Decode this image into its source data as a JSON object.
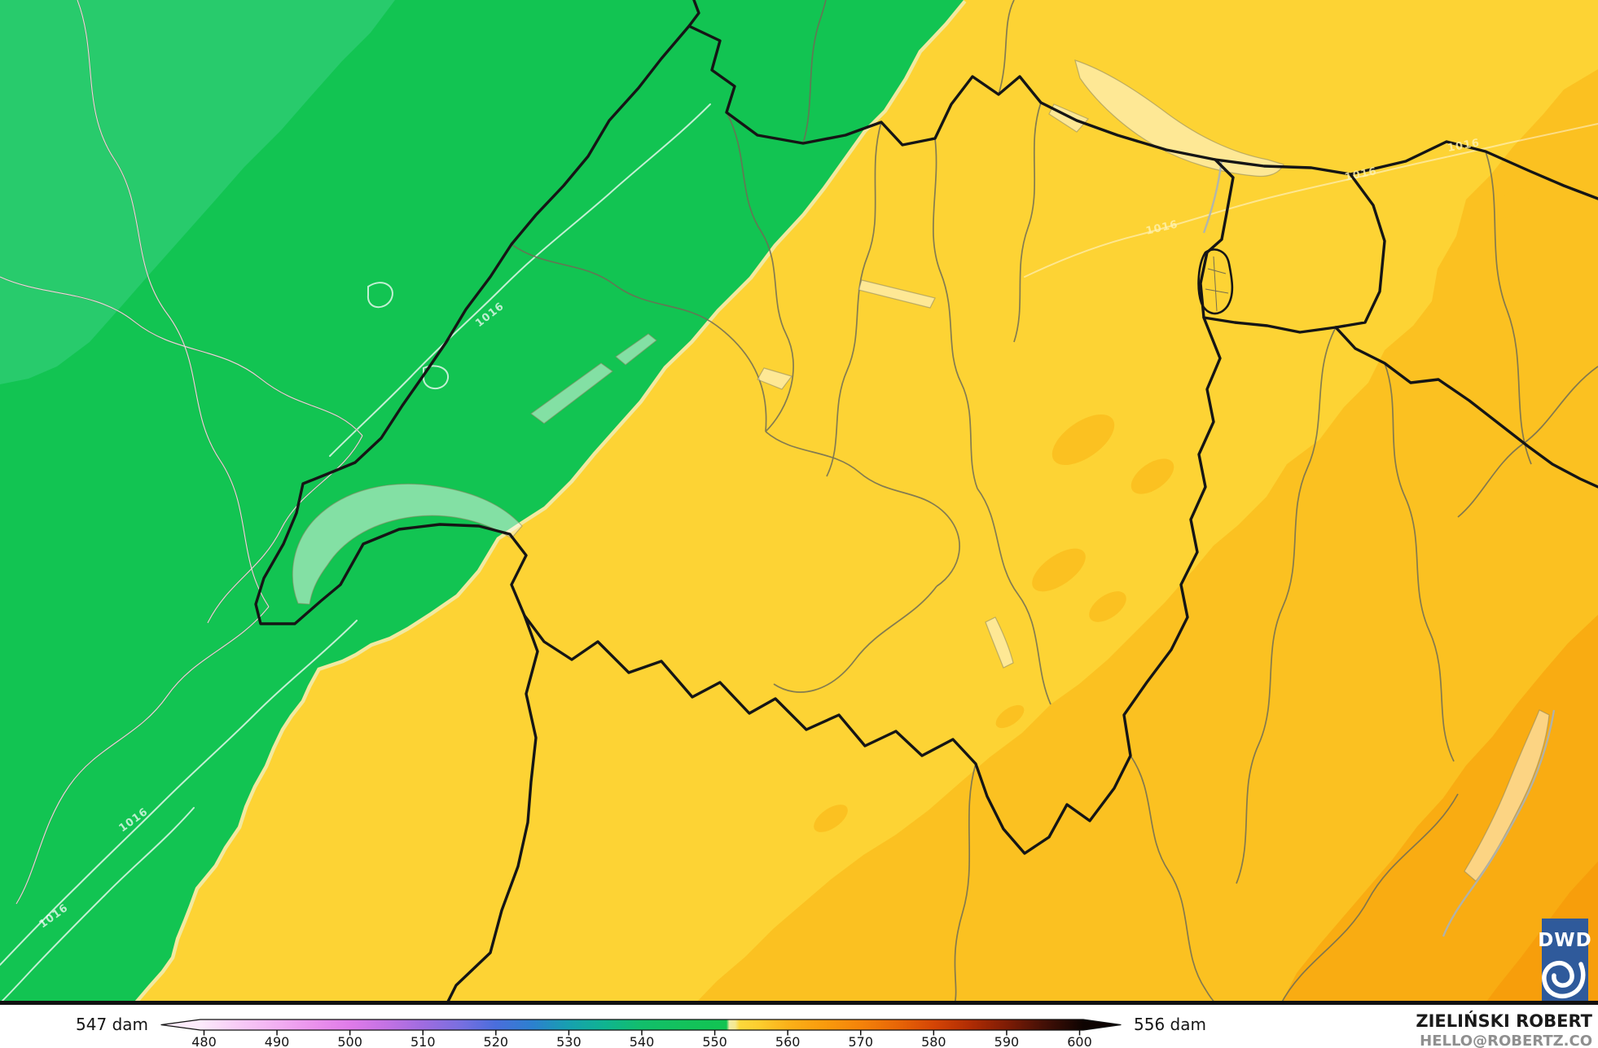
{
  "map": {
    "isobar_label": "1016",
    "palette": {
      "green_light": "#28CB6C",
      "green": "#12C452",
      "boundary_cream": "#F2E9A0",
      "yellow": "#FDD334",
      "amber": "#FBC121",
      "orange": "#F9AC12",
      "orange_deep": "#F79E0B",
      "country_border": "#151515",
      "region_border": "#6F6C55",
      "lake_outline": "#8a8560",
      "logo_blue": "#2F5A9B"
    }
  },
  "colorbar": {
    "min_label": "547 dam",
    "max_label": "556 dam",
    "range": [
      479.5,
      600.5
    ],
    "ticks": [
      480,
      490,
      500,
      510,
      520,
      530,
      540,
      550,
      560,
      570,
      580,
      590,
      600
    ],
    "gradient_stops": [
      [
        479.5,
        "#FCEBFB"
      ],
      [
        484,
        "#F8CFF7"
      ],
      [
        490,
        "#F2AFF2"
      ],
      [
        495,
        "#EA92EC"
      ],
      [
        500,
        "#DF7BE9"
      ],
      [
        505,
        "#C372E4"
      ],
      [
        510,
        "#9F6CE0"
      ],
      [
        515,
        "#7A6FE0"
      ],
      [
        520,
        "#4A6EDC"
      ],
      [
        525,
        "#2C80CF"
      ],
      [
        530,
        "#17A0AF"
      ],
      [
        535,
        "#0FB490"
      ],
      [
        540,
        "#12BE6B"
      ],
      [
        546,
        "#13C25B"
      ],
      [
        551.6,
        "#12C452"
      ],
      [
        552.0,
        "#F2ECA4"
      ],
      [
        552.8,
        "#F6E98F"
      ],
      [
        553.4,
        "#FDD83C"
      ],
      [
        556,
        "#FDCE2F"
      ],
      [
        560,
        "#FBB119"
      ],
      [
        565,
        "#F99B0D"
      ],
      [
        570,
        "#F4830A"
      ],
      [
        575,
        "#E86607"
      ],
      [
        580,
        "#D54505"
      ],
      [
        585,
        "#B02C04"
      ],
      [
        590,
        "#7E1C05"
      ],
      [
        595,
        "#451006"
      ],
      [
        600.5,
        "#0E0402"
      ]
    ]
  },
  "credit": {
    "name": "ZIELIŃSKI ROBERT",
    "email": "HELLO@ROBERTZ.CO"
  },
  "logo": {
    "label": "DWD"
  }
}
